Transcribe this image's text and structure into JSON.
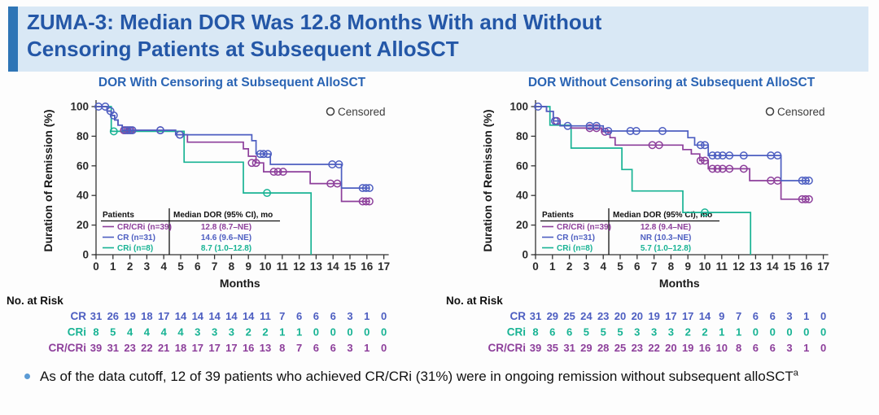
{
  "header": {
    "title": "ZUMA-3: Median DOR Was 12.8 Months With and Without Censoring Patients at Subsequent AlloSCT",
    "accent_color": "#2e75b6",
    "background_color": "#d9e8f5",
    "title_color": "#2457a7"
  },
  "colors": {
    "cr_blue": "#4d5ec1",
    "cri_teal": "#18b394",
    "crcri_purple": "#8d3f9b",
    "censor_mark": "#3d3d3d"
  },
  "footnote": {
    "text": "As of the data cutoff, 12 of 39 patients who achieved CR/CRi (31%) were in ongoing remission without subsequent alloSCT",
    "superscript": "a"
  },
  "chart_data": [
    {
      "type": "line",
      "subtype": "kaplan-meier-step",
      "title": "DOR With Censoring at Subsequent AlloSCT",
      "xlabel": "Months",
      "ylabel": "Duration of Remission (%)",
      "xlim": [
        0,
        17
      ],
      "ylim": [
        0,
        100
      ],
      "xticks": [
        0,
        1,
        2,
        3,
        4,
        5,
        6,
        7,
        8,
        9,
        10,
        11,
        12,
        13,
        14,
        15,
        16,
        17
      ],
      "yticks": [
        0,
        20,
        40,
        60,
        80,
        100
      ],
      "censored_legend": "Censored",
      "inset_table": {
        "col1_header": "Patients",
        "col2_header": "Median DOR (95% CI), mo",
        "rows": [
          {
            "name": "CR/CRi (n=39)",
            "value": "12.8 (8.7–NE)",
            "color": "#8d3f9b"
          },
          {
            "name": "CR (n=31)",
            "value": "14.6 (9.6–NE)",
            "color": "#4d5ec1"
          },
          {
            "name": "CRi (n=8)",
            "value": "8.7 (1.0–12.8)",
            "color": "#18b394"
          }
        ]
      },
      "series": [
        {
          "name": "CRi",
          "color": "#18b394",
          "steps": [
            [
              0,
              100
            ],
            [
              0.9,
              100
            ],
            [
              0.9,
              83.3
            ],
            [
              5.2,
              83.3
            ],
            [
              5.2,
              62.5
            ],
            [
              8.7,
              62.5
            ],
            [
              8.7,
              41.7
            ],
            [
              12.7,
              41.7
            ],
            [
              12.7,
              0
            ]
          ],
          "censors": [
            [
              1.05,
              83.3
            ],
            [
              10.1,
              41.7
            ]
          ]
        },
        {
          "name": "CR/CRi",
          "color": "#8d3f9b",
          "steps": [
            [
              0,
              100
            ],
            [
              0.65,
              100
            ],
            [
              0.65,
              97
            ],
            [
              0.9,
              97
            ],
            [
              0.9,
              94
            ],
            [
              1.1,
              94
            ],
            [
              1.1,
              91
            ],
            [
              1.3,
              91
            ],
            [
              1.3,
              87.5
            ],
            [
              1.55,
              87.5
            ],
            [
              1.55,
              84
            ],
            [
              4.7,
              84
            ],
            [
              4.7,
              81
            ],
            [
              5.4,
              81
            ],
            [
              5.4,
              76
            ],
            [
              8.7,
              76
            ],
            [
              8.7,
              71.5
            ],
            [
              9,
              71.5
            ],
            [
              9,
              66.5
            ],
            [
              9.45,
              66.5
            ],
            [
              9.45,
              62
            ],
            [
              9.9,
              62
            ],
            [
              9.9,
              56
            ],
            [
              12.65,
              56
            ],
            [
              12.65,
              48
            ],
            [
              14.5,
              48
            ],
            [
              14.5,
              36
            ],
            [
              16.15,
              36
            ]
          ],
          "censors": [
            [
              1.65,
              84
            ],
            [
              1.85,
              84
            ],
            [
              2.05,
              84
            ],
            [
              3.8,
              84
            ],
            [
              4.95,
              81
            ],
            [
              9.2,
              62
            ],
            [
              9.45,
              62
            ],
            [
              10.5,
              56
            ],
            [
              10.75,
              56
            ],
            [
              11.05,
              56
            ],
            [
              13.85,
              48
            ],
            [
              14.25,
              48
            ],
            [
              15.75,
              36
            ],
            [
              15.95,
              36
            ],
            [
              16.15,
              36
            ]
          ]
        },
        {
          "name": "CR",
          "color": "#4d5ec1",
          "steps": [
            [
              0,
              100
            ],
            [
              0.65,
              100
            ],
            [
              0.65,
              97
            ],
            [
              0.9,
              97
            ],
            [
              0.9,
              94
            ],
            [
              1.1,
              94
            ],
            [
              1.1,
              91
            ],
            [
              1.3,
              91
            ],
            [
              1.3,
              87.5
            ],
            [
              1.55,
              87.5
            ],
            [
              1.55,
              84
            ],
            [
              4.7,
              84
            ],
            [
              4.7,
              81
            ],
            [
              9.2,
              81
            ],
            [
              9.2,
              77
            ],
            [
              9.45,
              77
            ],
            [
              9.45,
              68
            ],
            [
              10.3,
              68
            ],
            [
              10.3,
              61
            ],
            [
              14.5,
              61
            ],
            [
              14.5,
              45
            ],
            [
              16.15,
              45
            ]
          ],
          "censors": [
            [
              0.15,
              100
            ],
            [
              0.55,
              100
            ],
            [
              0.85,
              97
            ],
            [
              1.05,
              94
            ],
            [
              1.75,
              84
            ],
            [
              1.95,
              84
            ],
            [
              2.15,
              84
            ],
            [
              3.8,
              84
            ],
            [
              4.95,
              81
            ],
            [
              9.7,
              68
            ],
            [
              9.9,
              68
            ],
            [
              10.15,
              68
            ],
            [
              13.95,
              61
            ],
            [
              14.35,
              61
            ],
            [
              15.75,
              45
            ],
            [
              15.95,
              45
            ],
            [
              16.15,
              45
            ]
          ]
        }
      ],
      "risk_table": {
        "label": "No. at Risk",
        "months": [
          0,
          1,
          2,
          3,
          4,
          5,
          6,
          7,
          8,
          9,
          10,
          11,
          12,
          13,
          14,
          15,
          16,
          17
        ],
        "rows": [
          {
            "name": "CR",
            "color": "#4d5ec1",
            "values": [
              31,
              26,
              19,
              18,
              17,
              14,
              14,
              14,
              14,
              14,
              11,
              7,
              6,
              6,
              6,
              3,
              1,
              0
            ]
          },
          {
            "name": "CRi",
            "color": "#18b394",
            "values": [
              8,
              5,
              4,
              4,
              4,
              4,
              3,
              3,
              3,
              2,
              2,
              1,
              1,
              0,
              0,
              0,
              0,
              0
            ]
          },
          {
            "name": "CR/CRi",
            "color": "#8d3f9b",
            "values": [
              39,
              31,
              23,
              22,
              21,
              18,
              17,
              17,
              17,
              16,
              13,
              8,
              7,
              6,
              6,
              3,
              1,
              0
            ]
          }
        ]
      }
    },
    {
      "type": "line",
      "subtype": "kaplan-meier-step",
      "title": "DOR Without Censoring at Subsequent AlloSCT",
      "xlabel": "Months",
      "ylabel": "Duration of Remission (%)",
      "xlim": [
        0,
        17
      ],
      "ylim": [
        0,
        100
      ],
      "xticks": [
        0,
        1,
        2,
        3,
        4,
        5,
        6,
        7,
        8,
        9,
        10,
        11,
        12,
        13,
        14,
        15,
        16,
        17
      ],
      "yticks": [
        0,
        20,
        40,
        60,
        80,
        100
      ],
      "censored_legend": "Censored",
      "inset_table": {
        "col1_header": "Patients",
        "col2_header": "Median DOR (95% CI), mo",
        "rows": [
          {
            "name": "CR/CRi (n=39)",
            "value": "12.8 (9.4–NE)",
            "color": "#8d3f9b"
          },
          {
            "name": "CR (n=31)",
            "value": "NR (10.3–NE)",
            "color": "#4d5ec1"
          },
          {
            "name": "CRi (n=8)",
            "value": "5.7 (1.0–12.8)",
            "color": "#18b394"
          }
        ]
      },
      "series": [
        {
          "name": "CRi",
          "color": "#18b394",
          "steps": [
            [
              0,
              100
            ],
            [
              0.85,
              100
            ],
            [
              0.85,
              87.5
            ],
            [
              2.1,
              87.5
            ],
            [
              2.1,
              72
            ],
            [
              5.1,
              72
            ],
            [
              5.1,
              57.5
            ],
            [
              5.7,
              57.5
            ],
            [
              5.7,
              43
            ],
            [
              8.7,
              43
            ],
            [
              8.7,
              28.5
            ],
            [
              12.7,
              28.5
            ],
            [
              12.7,
              0
            ]
          ],
          "censors": [
            [
              10,
              28.5
            ]
          ]
        },
        {
          "name": "CR/CRi",
          "color": "#8d3f9b",
          "steps": [
            [
              0,
              100
            ],
            [
              0.65,
              100
            ],
            [
              0.65,
              96.8
            ],
            [
              1.05,
              96.8
            ],
            [
              1.05,
              90.3
            ],
            [
              1.45,
              90.3
            ],
            [
              1.45,
              87
            ],
            [
              2.1,
              87
            ],
            [
              2.1,
              85.5
            ],
            [
              3.9,
              85.5
            ],
            [
              3.9,
              83
            ],
            [
              4.4,
              83
            ],
            [
              4.4,
              79
            ],
            [
              4.7,
              79
            ],
            [
              4.7,
              74
            ],
            [
              8.7,
              74
            ],
            [
              8.7,
              71
            ],
            [
              9.2,
              71
            ],
            [
              9.2,
              68
            ],
            [
              9.7,
              68
            ],
            [
              9.7,
              63.5
            ],
            [
              10.2,
              63.5
            ],
            [
              10.2,
              58
            ],
            [
              12.65,
              58
            ],
            [
              12.65,
              50
            ],
            [
              14.5,
              50
            ],
            [
              14.5,
              37.5
            ],
            [
              16.2,
              37.5
            ]
          ],
          "censors": [
            [
              1.25,
              90.3
            ],
            [
              3.2,
              85.5
            ],
            [
              3.6,
              85.5
            ],
            [
              4.1,
              83
            ],
            [
              6.9,
              74
            ],
            [
              7.3,
              74
            ],
            [
              9.75,
              63.5
            ],
            [
              10,
              63.5
            ],
            [
              10.45,
              58
            ],
            [
              10.75,
              58
            ],
            [
              11.05,
              58
            ],
            [
              11.45,
              58
            ],
            [
              12.3,
              58
            ],
            [
              13.9,
              50
            ],
            [
              14.3,
              50
            ],
            [
              15.75,
              37.5
            ],
            [
              15.95,
              37.5
            ],
            [
              16.15,
              37.5
            ]
          ]
        },
        {
          "name": "CR",
          "color": "#4d5ec1",
          "steps": [
            [
              0,
              100
            ],
            [
              0.65,
              100
            ],
            [
              0.65,
              96.8
            ],
            [
              1.05,
              96.8
            ],
            [
              1.05,
              90.3
            ],
            [
              1.45,
              90.3
            ],
            [
              1.45,
              87
            ],
            [
              4,
              87
            ],
            [
              4,
              83.5
            ],
            [
              9,
              83.5
            ],
            [
              9,
              79
            ],
            [
              9.4,
              79
            ],
            [
              9.4,
              74
            ],
            [
              10.2,
              74
            ],
            [
              10.2,
              67
            ],
            [
              14.5,
              67
            ],
            [
              14.5,
              50
            ],
            [
              16.2,
              50
            ]
          ],
          "censors": [
            [
              0.15,
              100
            ],
            [
              1.15,
              90.3
            ],
            [
              1.9,
              87
            ],
            [
              3.2,
              87
            ],
            [
              3.6,
              87
            ],
            [
              4.3,
              83.5
            ],
            [
              5.6,
              83.5
            ],
            [
              5.95,
              83.5
            ],
            [
              7.5,
              83.5
            ],
            [
              9.75,
              74
            ],
            [
              10,
              74
            ],
            [
              10.45,
              67
            ],
            [
              10.75,
              67
            ],
            [
              11.05,
              67
            ],
            [
              11.45,
              67
            ],
            [
              12.3,
              67
            ],
            [
              13.9,
              67
            ],
            [
              14.3,
              67
            ],
            [
              15.75,
              50
            ],
            [
              15.95,
              50
            ],
            [
              16.15,
              50
            ]
          ]
        }
      ],
      "risk_table": {
        "label": "No. at Risk",
        "months": [
          0,
          1,
          2,
          3,
          4,
          5,
          6,
          7,
          8,
          9,
          10,
          11,
          12,
          13,
          14,
          15,
          16,
          17
        ],
        "rows": [
          {
            "name": "CR",
            "color": "#4d5ec1",
            "values": [
              31,
              29,
              25,
              24,
              23,
              20,
              20,
              19,
              17,
              17,
              14,
              9,
              7,
              6,
              6,
              3,
              1,
              0
            ]
          },
          {
            "name": "CRi",
            "color": "#18b394",
            "values": [
              8,
              6,
              6,
              5,
              5,
              5,
              3,
              3,
              3,
              2,
              2,
              1,
              1,
              0,
              0,
              0,
              0,
              0
            ]
          },
          {
            "name": "CR/CRi",
            "color": "#8d3f9b",
            "values": [
              39,
              35,
              31,
              29,
              28,
              25,
              23,
              22,
              20,
              19,
              16,
              10,
              8,
              6,
              6,
              3,
              1,
              0
            ]
          }
        ]
      }
    }
  ]
}
